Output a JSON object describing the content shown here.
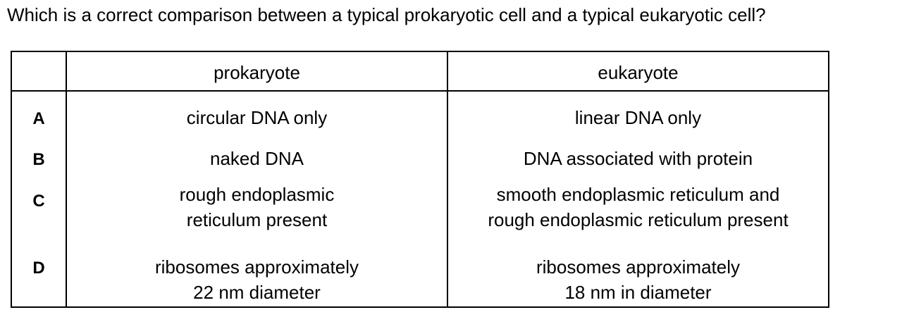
{
  "question": "Which is a correct comparison between a typical prokaryotic cell and a typical eukaryotic cell?",
  "table": {
    "headers": {
      "blank": "",
      "prokaryote": "prokaryote",
      "eukaryote": "eukaryote"
    },
    "rows": [
      {
        "option": "A",
        "prokaryote": "circular DNA only",
        "eukaryote": "linear DNA only"
      },
      {
        "option": "B",
        "prokaryote": "naked DNA",
        "eukaryote": "DNA associated with protein"
      },
      {
        "option": "C",
        "prokaryote": "rough endoplasmic\nreticulum present",
        "eukaryote": "smooth endoplasmic reticulum and\nrough endoplasmic reticulum present"
      },
      {
        "option": "D",
        "prokaryote": "ribosomes approximately\n22 nm diameter",
        "eukaryote": "ribosomes approximately\n18 nm in diameter"
      }
    ]
  }
}
